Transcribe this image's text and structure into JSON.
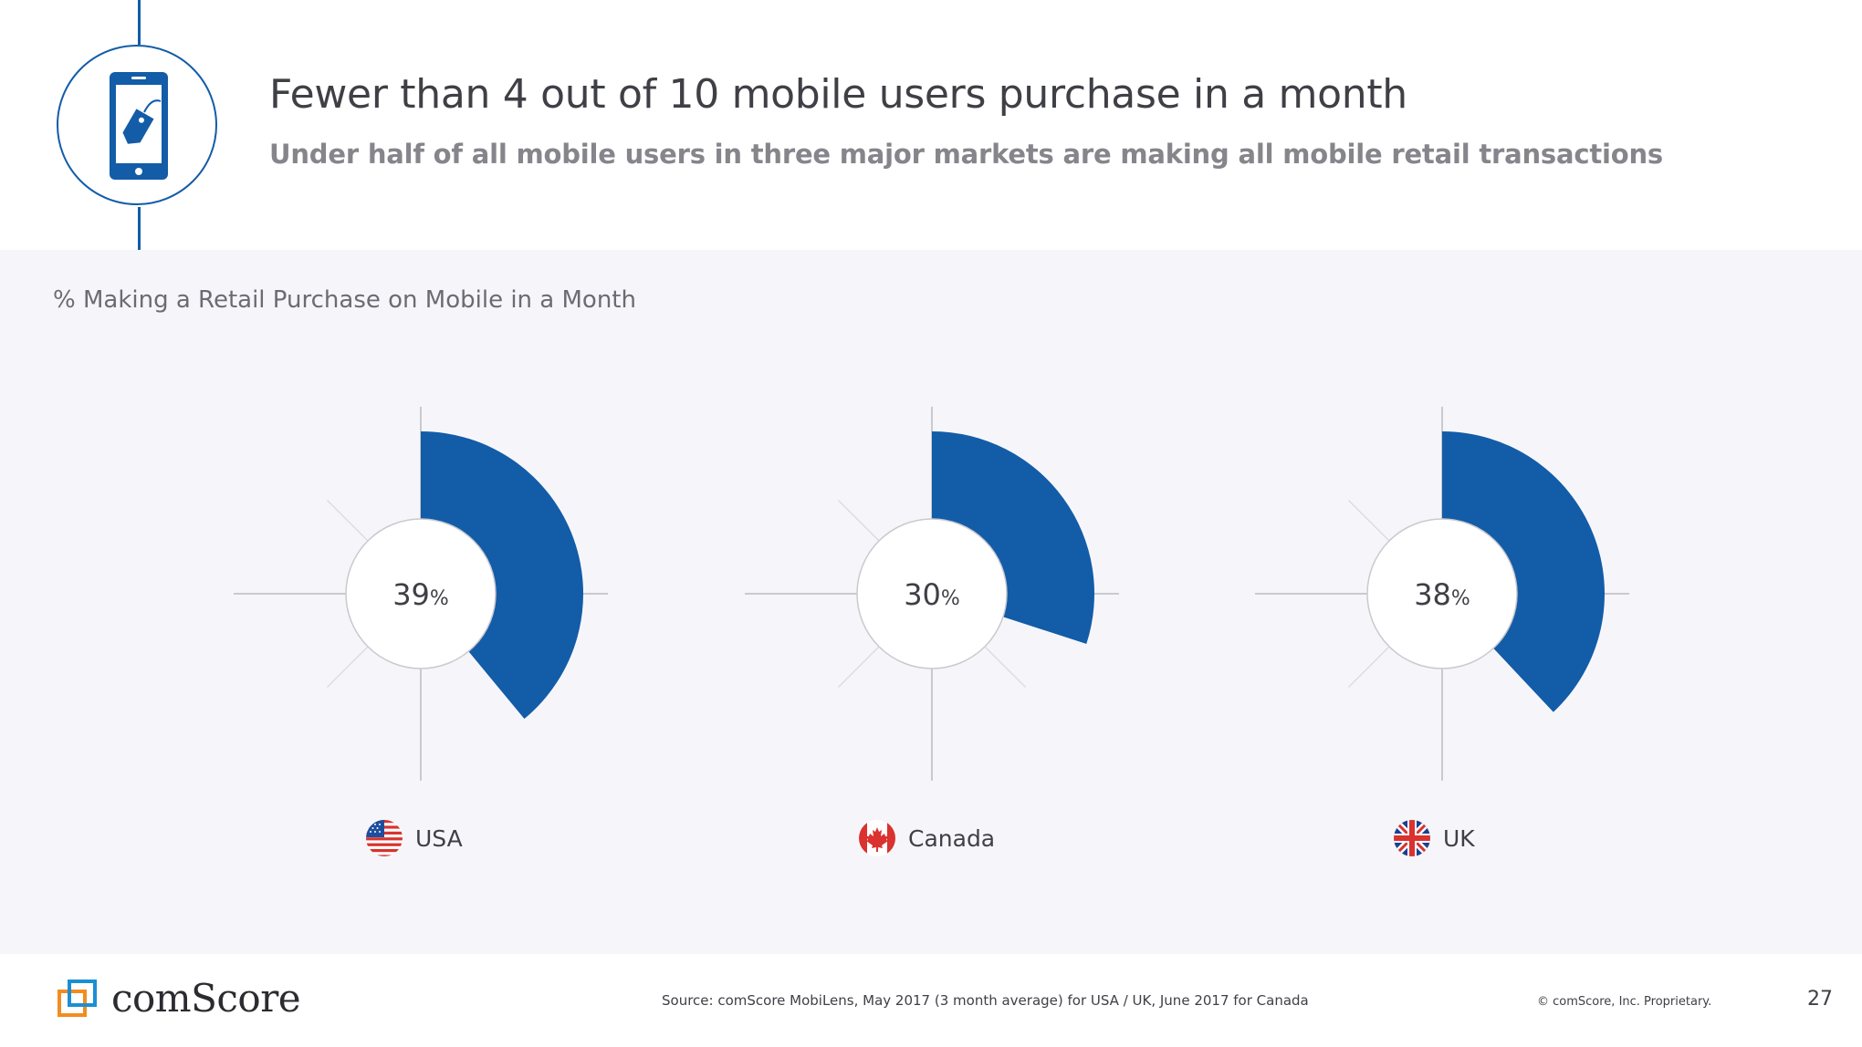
{
  "header": {
    "icon": "smartphone-tag-icon",
    "title": "Fewer than 4 out of 10 mobile users purchase in a month",
    "subtitle": "Under half of all mobile users in three major markets are making all mobile retail transactions",
    "accent_color": "#135ca8"
  },
  "chart_data": {
    "type": "radial-bar",
    "title": "% Making a Retail Purchase on Mobile in a Month",
    "unit": "%",
    "scale_max": 100,
    "bar_color": "#135ca8",
    "series": [
      {
        "country": "USA",
        "value": 39,
        "value_text": "39",
        "flag": "us-flag-icon"
      },
      {
        "country": "Canada",
        "value": 30,
        "value_text": "30",
        "flag": "canada-flag-icon"
      },
      {
        "country": "UK",
        "value": 38,
        "value_text": "38",
        "flag": "uk-flag-icon"
      }
    ]
  },
  "footer": {
    "logo_text": "comScore",
    "source": "Source: comScore MobiLens, May 2017 (3 month average) for USA / UK, June 2017 for Canada",
    "copyright": "© comScore, Inc. Proprietary.",
    "page_number": "27"
  }
}
